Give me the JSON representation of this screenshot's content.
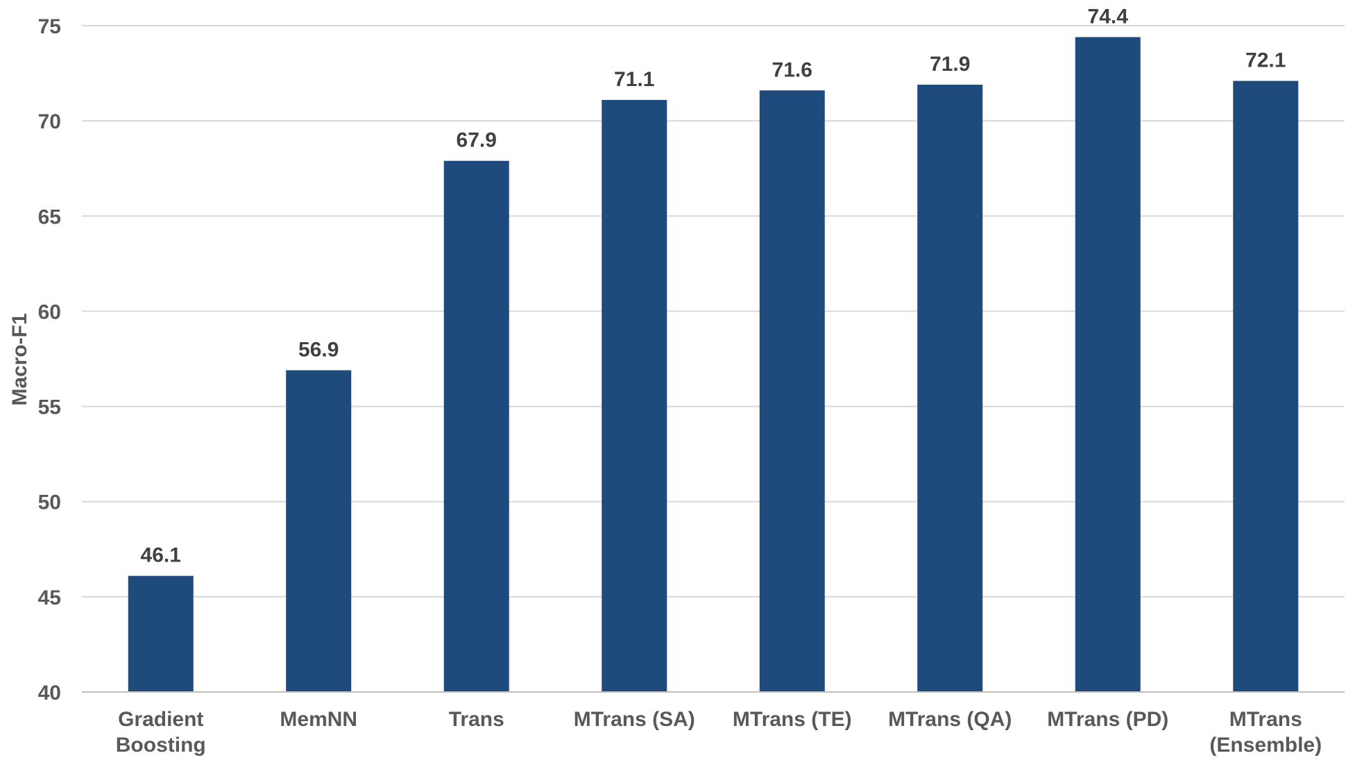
{
  "chart_data": {
    "type": "bar",
    "title": "",
    "xlabel": "",
    "ylabel": "Macro-F1",
    "ylim": [
      40,
      75
    ],
    "yticks": [
      40,
      45,
      50,
      55,
      60,
      65,
      70,
      75
    ],
    "grid": true,
    "legend": "none",
    "bar_color": "#1f4a7c",
    "categories": [
      [
        "Gradient",
        "Boosting"
      ],
      [
        "MemNN"
      ],
      [
        "Trans"
      ],
      [
        "MTrans (SA)"
      ],
      [
        "MTrans (TE)"
      ],
      [
        "MTrans (QA)"
      ],
      [
        "MTrans (PD)"
      ],
      [
        "MTrans",
        "(Ensemble)"
      ]
    ],
    "values": [
      46.1,
      56.9,
      67.9,
      71.1,
      71.6,
      71.9,
      74.4,
      72.1
    ],
    "value_labels": [
      "46.1",
      "56.9",
      "67.9",
      "71.1",
      "71.6",
      "71.9",
      "74.4",
      "72.1"
    ]
  }
}
